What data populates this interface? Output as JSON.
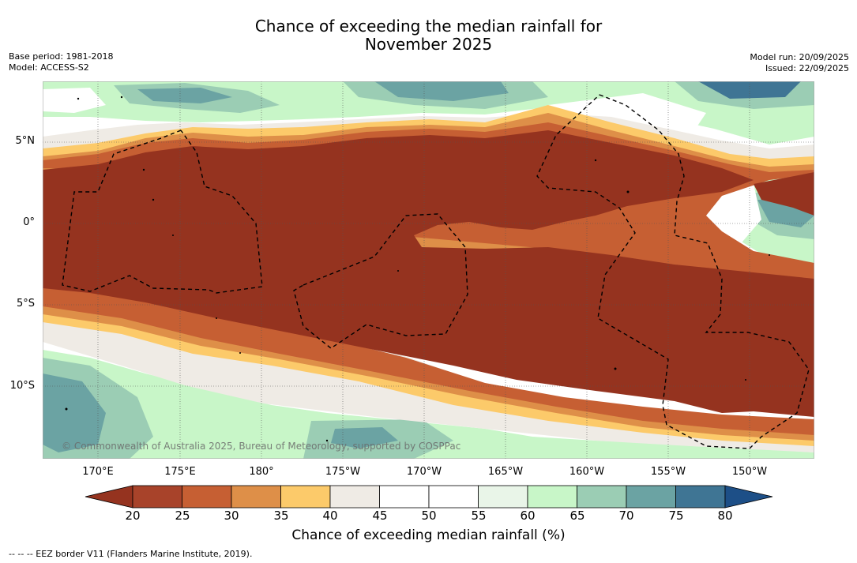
{
  "header": {
    "title_line1": "Chance of exceeding the median rainfall for",
    "title_line2": "November 2025",
    "base_period": "Base period: 1981-2018",
    "model": "Model: ACCESS-S2",
    "model_run": "Model run: 20/09/2025",
    "issued": "Issued: 22/09/2025"
  },
  "map": {
    "lat_labels": [
      "5°N",
      "0°",
      "5°S",
      "10°S"
    ],
    "lon_labels": [
      "170°E",
      "175°E",
      "180°",
      "175°W",
      "170°W",
      "165°W",
      "160°W",
      "155°W",
      "150°W"
    ],
    "credit": "© Commonwealth of Australia 2025, Bureau of Meteorology, supported by COSPPac"
  },
  "colorbar": {
    "ticks": [
      "20",
      "25",
      "30",
      "35",
      "40",
      "45",
      "50",
      "55",
      "60",
      "65",
      "70",
      "75",
      "80"
    ],
    "colors": [
      "#a8432a",
      "#c65f33",
      "#de8f48",
      "#fcca6a",
      "#efebe5",
      "#ffffff",
      "#ffffff",
      "#e9f5e8",
      "#c8f6c8",
      "#9bcdb4",
      "#6ba3a3",
      "#3f7594"
    ],
    "under_color": "#95331f",
    "over_color": "#1d4f87",
    "label": "Chance of exceeding median rainfall (%)"
  },
  "footnote": "-- -- -- EEZ border V11 (Flanders Marine Institute, 2019)."
}
